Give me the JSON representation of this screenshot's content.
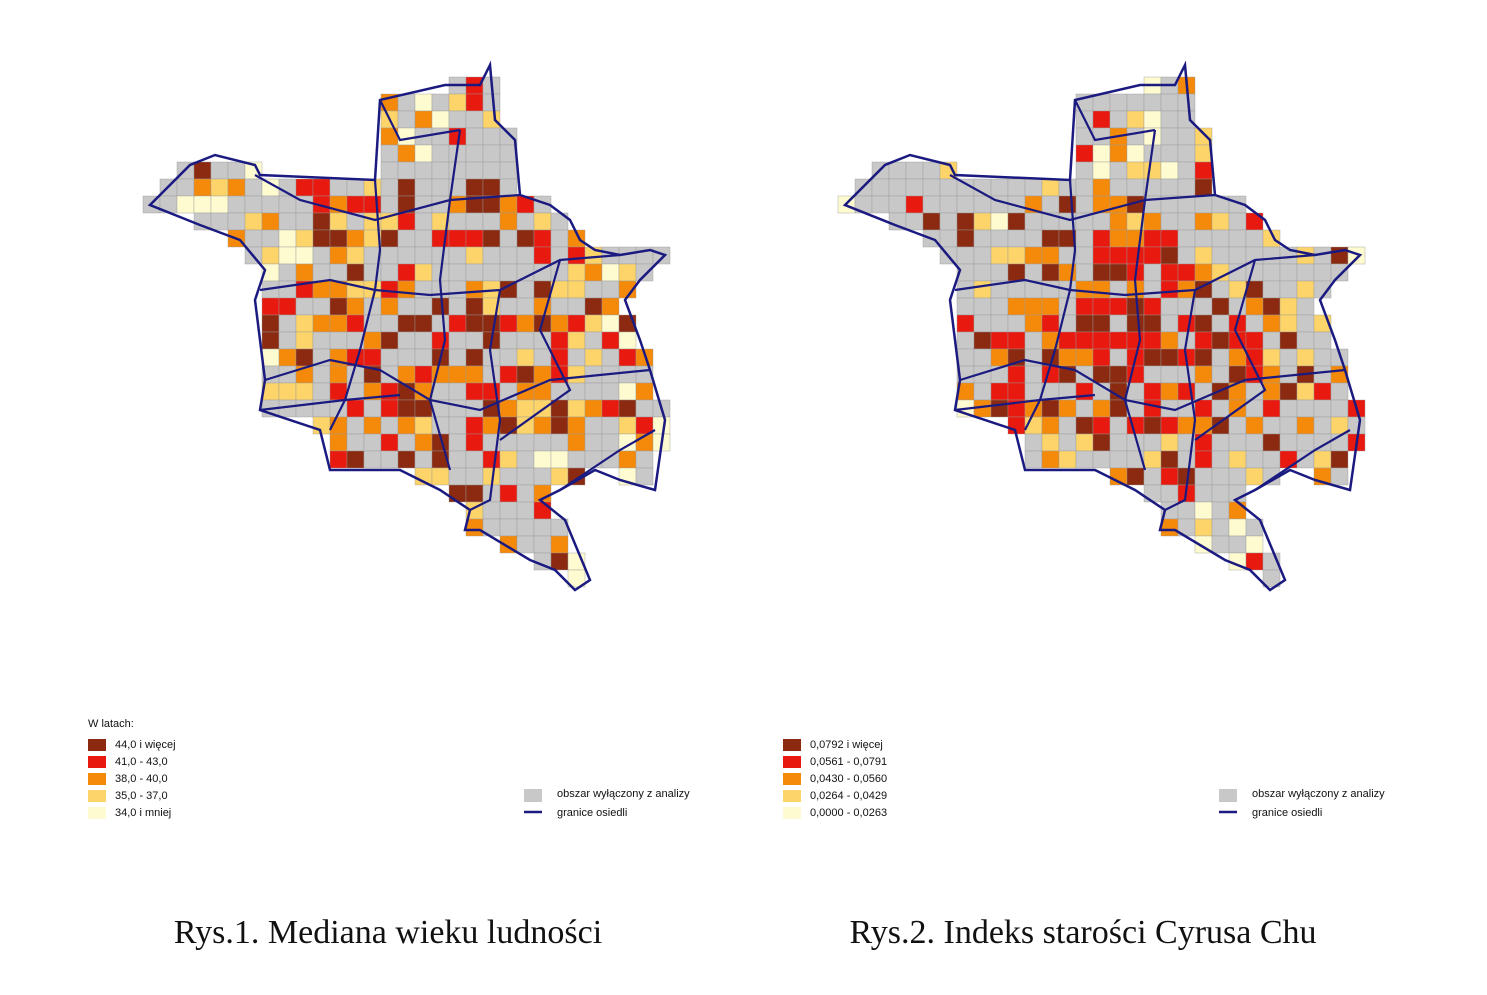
{
  "maps": [
    {
      "legend_title": "W latach:",
      "classes": [
        {
          "label": "44,0 i więcej",
          "color": "#8b2a10"
        },
        {
          "label": "41,0 - 43,0",
          "color": "#e8190e"
        },
        {
          "label": "38,0 - 40,0",
          "color": "#f58a0a"
        },
        {
          "label": "35,0 - 37,0",
          "color": "#fcd46a"
        },
        {
          "label": "34,0 i mniej",
          "color": "#fffbd0"
        }
      ],
      "caption": "Rys.1. Mediana wieku ludności"
    },
    {
      "classes": [
        {
          "label": "0,0792 i więcej",
          "color": "#8b2a10"
        },
        {
          "label": "0,0561 - 0,0791",
          "color": "#e8190e"
        },
        {
          "label": "0,0430 - 0,0560",
          "color": "#f58a0a"
        },
        {
          "label": "0,0264 - 0,0429",
          "color": "#fcd46a"
        },
        {
          "label": "0,0000 - 0,0263",
          "color": "#fffbd0"
        }
      ],
      "caption": "Rys.2. Indeks starości Cyrusa Chu"
    }
  ],
  "excluded": {
    "label": "obszar wyłączony z analizy",
    "color": "#c8c8c8"
  },
  "boundaries": {
    "label": "granice osiedli",
    "color": "#1a1a80"
  }
}
